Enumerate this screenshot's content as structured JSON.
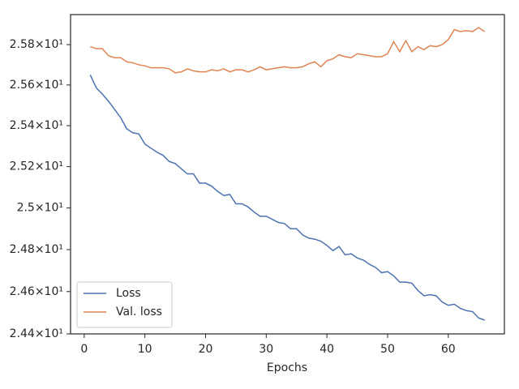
{
  "chart_data": {
    "type": "line",
    "xlabel": "Epochs",
    "x": [
      1,
      2,
      3,
      4,
      5,
      6,
      7,
      8,
      9,
      10,
      11,
      12,
      13,
      14,
      15,
      16,
      17,
      18,
      19,
      20,
      21,
      22,
      23,
      24,
      25,
      26,
      27,
      28,
      29,
      30,
      31,
      32,
      33,
      34,
      35,
      36,
      37,
      38,
      39,
      40,
      41,
      42,
      43,
      44,
      45,
      46,
      47,
      48,
      49,
      50,
      51,
      52,
      53,
      54,
      55,
      56,
      57,
      58,
      59,
      60,
      61,
      62,
      63,
      64,
      65,
      66
    ],
    "series": [
      {
        "name": "Loss",
        "color": "#4c72b0",
        "values": [
          25.65,
          25.585,
          25.555,
          25.52,
          25.48,
          25.44,
          25.385,
          25.365,
          25.36,
          25.31,
          25.29,
          25.27,
          25.255,
          25.225,
          25.215,
          25.19,
          25.165,
          25.165,
          25.12,
          25.12,
          25.105,
          25.08,
          25.06,
          25.065,
          25.02,
          25.02,
          25.005,
          24.98,
          24.96,
          24.96,
          24.945,
          24.93,
          24.925,
          24.9,
          24.9,
          24.87,
          24.855,
          24.85,
          24.84,
          24.82,
          24.795,
          24.815,
          24.775,
          24.78,
          24.76,
          24.75,
          24.73,
          24.715,
          24.69,
          24.695,
          24.675,
          24.645,
          24.645,
          24.64,
          24.605,
          24.58,
          24.585,
          24.58,
          24.55,
          24.535,
          24.54,
          24.52,
          24.51,
          24.505,
          24.475,
          24.465
        ]
      },
      {
        "name": "Val. loss",
        "color": "#dd8452",
        "values": [
          25.79,
          25.78,
          25.78,
          25.745,
          25.735,
          25.735,
          25.715,
          25.71,
          25.7,
          25.695,
          25.685,
          25.685,
          25.685,
          25.68,
          25.66,
          25.665,
          25.68,
          25.67,
          25.665,
          25.665,
          25.675,
          25.67,
          25.68,
          25.665,
          25.675,
          25.675,
          25.665,
          25.675,
          25.69,
          25.675,
          25.68,
          25.685,
          25.69,
          25.685,
          25.685,
          25.69,
          25.705,
          25.715,
          25.69,
          25.72,
          25.73,
          25.75,
          25.74,
          25.735,
          25.755,
          25.75,
          25.745,
          25.74,
          25.74,
          25.755,
          25.815,
          25.765,
          25.82,
          25.765,
          25.79,
          25.775,
          25.795,
          25.79,
          25.8,
          25.825,
          25.875,
          25.865,
          25.87,
          25.865,
          25.885,
          25.865
        ]
      }
    ],
    "xlim": [
      -2.25,
      69.25
    ],
    "xticks": [
      0,
      10,
      20,
      30,
      40,
      50,
      60
    ],
    "ylim": [
      24.4,
      25.95
    ],
    "log_y": true,
    "yticks": [
      {
        "value": 24.4,
        "label": "2.44×10¹"
      },
      {
        "value": 24.6,
        "label": "2.46×10¹"
      },
      {
        "value": 24.8,
        "label": "2.48×10¹"
      },
      {
        "value": 25,
        "label": "2.5×10¹"
      },
      {
        "value": 25.2,
        "label": "2.52×10¹"
      },
      {
        "value": 25.4,
        "label": "2.54×10¹"
      },
      {
        "value": 25.6,
        "label": "2.56×10¹"
      },
      {
        "value": 25.8,
        "label": "2.58×10¹"
      }
    ],
    "grid": false,
    "legend": "lower left"
  }
}
